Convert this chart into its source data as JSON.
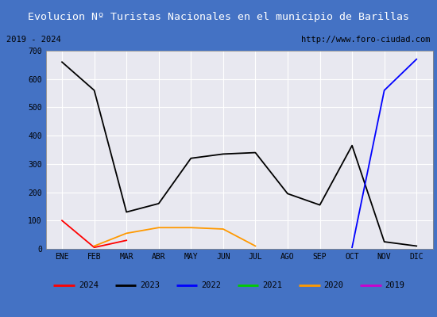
{
  "title": "Evolucion Nº Turistas Nacionales en el municipio de Barillas",
  "subtitle_left": "2019 - 2024",
  "subtitle_right": "http://www.foro-ciudad.com",
  "x_labels": [
    "ENE",
    "FEB",
    "MAR",
    "ABR",
    "MAY",
    "JUN",
    "JUL",
    "AGO",
    "SEP",
    "OCT",
    "NOV",
    "DIC"
  ],
  "ylim": [
    0,
    700
  ],
  "yticks": [
    0,
    100,
    200,
    300,
    400,
    500,
    600,
    700
  ],
  "series": {
    "2024": {
      "color": "#ff0000",
      "data": [
        100,
        5,
        30,
        null,
        null,
        null,
        null,
        null,
        null,
        null,
        null,
        null
      ]
    },
    "2023": {
      "color": "#000000",
      "data": [
        660,
        560,
        130,
        160,
        320,
        335,
        340,
        195,
        155,
        365,
        25,
        10
      ]
    },
    "2022": {
      "color": "#0000ff",
      "data": [
        null,
        null,
        null,
        null,
        null,
        null,
        null,
        null,
        null,
        5,
        560,
        670
      ]
    },
    "2021": {
      "color": "#00cc00",
      "data": [
        null,
        null,
        null,
        null,
        null,
        null,
        null,
        null,
        null,
        null,
        null,
        null
      ]
    },
    "2020": {
      "color": "#ff9900",
      "data": [
        null,
        10,
        55,
        75,
        75,
        70,
        10,
        null,
        null,
        null,
        null,
        null
      ]
    },
    "2019": {
      "color": "#cc00cc",
      "data": [
        null,
        null,
        null,
        null,
        null,
        null,
        null,
        null,
        null,
        null,
        null,
        null
      ]
    }
  },
  "title_bg": "#4472c4",
  "title_color": "#ffffff",
  "subtitle_bg": "#ffffff",
  "plot_bg": "#e8e8f0",
  "grid_color": "#ffffff",
  "border_color": "#4472c4",
  "title_fontsize": 9.5,
  "subtitle_fontsize": 7.5,
  "tick_fontsize": 7,
  "legend_fontsize": 7.5
}
